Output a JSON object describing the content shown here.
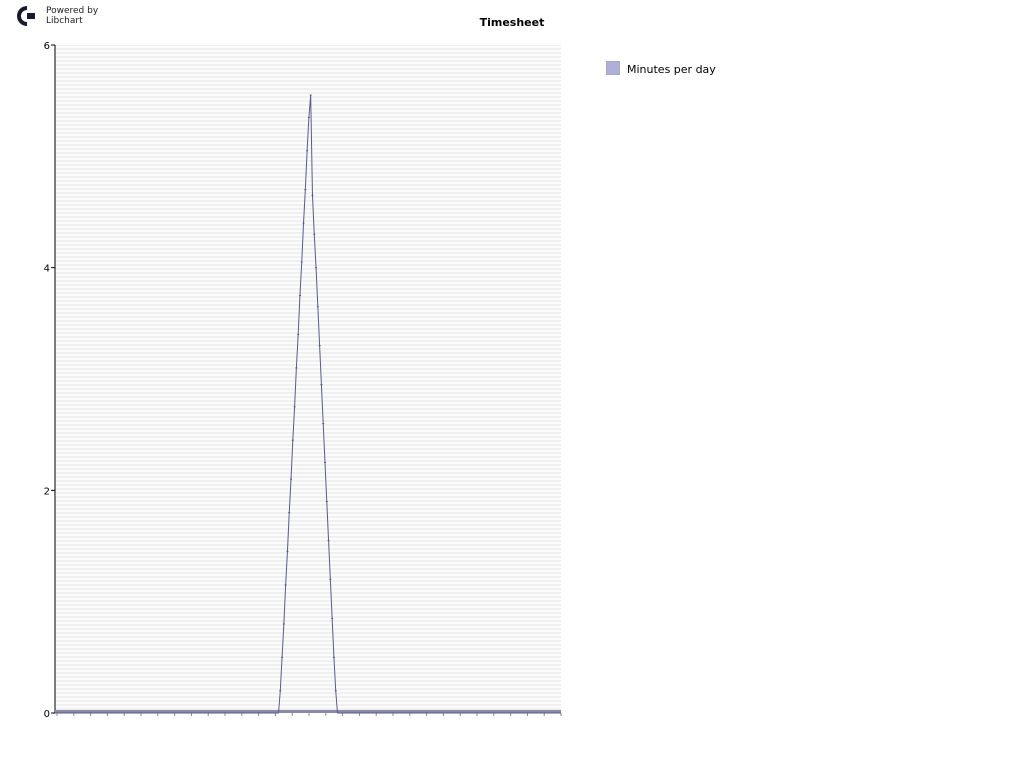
{
  "branding": {
    "line1": "Powered by",
    "line2": "Libchart"
  },
  "legend": {
    "label": "Minutes per day",
    "color": "#afafdc"
  },
  "colors": {
    "series": "#5a5a8c",
    "plot_background": "#f0f0f0",
    "gridline": "#ffffff",
    "baseline": "#8a8aa8"
  },
  "chart_data": {
    "type": "line",
    "title": "Timesheet",
    "xlabel": "",
    "ylabel": "",
    "ylim": [
      0,
      6
    ],
    "yticks": [
      0,
      2,
      4,
      6
    ],
    "grid": true,
    "legend_position": "right",
    "series": [
      {
        "name": "Minutes per day",
        "values": [
          0,
          0,
          0,
          0,
          0,
          0,
          0,
          0,
          0,
          0,
          0,
          0,
          0,
          0,
          0,
          0,
          0,
          0,
          0,
          0,
          0,
          0,
          0,
          0,
          0,
          0,
          0,
          0,
          0,
          0,
          0,
          0,
          0,
          0,
          0,
          0,
          0,
          0,
          0,
          0,
          0,
          0,
          0,
          0,
          0,
          0,
          0,
          0,
          0,
          0,
          0,
          0,
          0,
          0,
          0,
          0,
          0,
          0,
          0,
          0,
          0,
          0,
          0,
          0,
          0,
          0,
          0,
          0,
          0,
          0,
          0,
          0,
          0,
          0,
          0,
          0,
          0,
          0,
          0,
          0,
          0,
          0,
          0,
          0,
          0,
          0,
          0,
          0,
          0,
          0,
          0,
          0,
          0,
          0,
          0,
          0,
          0,
          0,
          0,
          0,
          0,
          0,
          0,
          0,
          0,
          0,
          0,
          0,
          0,
          0,
          0,
          0,
          0,
          0,
          0,
          0,
          0,
          0,
          0,
          0,
          0,
          0,
          0,
          0,
          0,
          0,
          0.2,
          0.5,
          0.8,
          1.15,
          1.45,
          1.8,
          2.1,
          2.45,
          2.75,
          3.1,
          3.4,
          3.75,
          4.05,
          4.4,
          4.7,
          5.05,
          5.35,
          5.55,
          4.65,
          4.3,
          4.0,
          3.65,
          3.3,
          2.95,
          2.6,
          2.25,
          1.9,
          1.55,
          1.2,
          0.85,
          0.5,
          0.2,
          0,
          0,
          0,
          0,
          0,
          0,
          0,
          0,
          0,
          0,
          0,
          0,
          0,
          0,
          0,
          0,
          0,
          0,
          0,
          0,
          0,
          0,
          0,
          0,
          0,
          0,
          0,
          0,
          0,
          0,
          0,
          0,
          0,
          0,
          0,
          0,
          0,
          0,
          0,
          0,
          0,
          0,
          0,
          0,
          0,
          0,
          0,
          0,
          0,
          0,
          0,
          0,
          0,
          0,
          0,
          0,
          0,
          0,
          0,
          0,
          0,
          0,
          0,
          0,
          0,
          0,
          0,
          0,
          0,
          0,
          0,
          0,
          0,
          0,
          0,
          0,
          0,
          0,
          0,
          0,
          0,
          0,
          0,
          0,
          0,
          0,
          0,
          0,
          0,
          0,
          0,
          0,
          0,
          0,
          0,
          0,
          0,
          0,
          0,
          0,
          0,
          0,
          0,
          0,
          0,
          0,
          0,
          0,
          0,
          0,
          0,
          0,
          0,
          0,
          0,
          0,
          0,
          0,
          0,
          0,
          0,
          0,
          0,
          0,
          0,
          0
        ]
      }
    ]
  }
}
